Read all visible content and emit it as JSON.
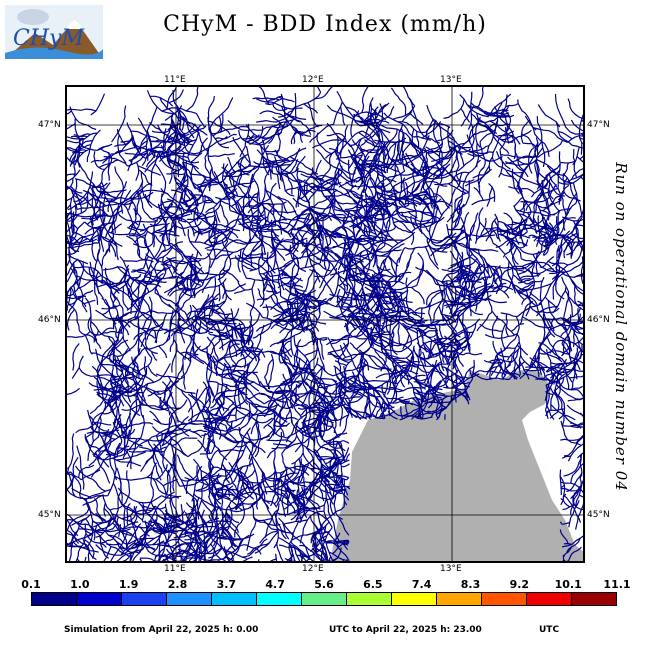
{
  "header": {
    "logo_text": "CHyM",
    "title": "CHyM - BDD Index (mm/h)"
  },
  "side_label": "Run on operational domain number 04",
  "map": {
    "lon_labels": [
      "11°E",
      "12°E",
      "13°E"
    ],
    "lat_labels": [
      "47°N",
      "46°N",
      "45°N"
    ],
    "river_color": "#00008b",
    "sea_color": "#b0b0b0"
  },
  "scale": {
    "labels": [
      "0.1",
      "1.0",
      "1.9",
      "2.8",
      "3.7",
      "4.7",
      "5.6",
      "6.5",
      "7.4",
      "8.3",
      "9.2",
      "10.1",
      "11.1"
    ],
    "colors": [
      "#00008b",
      "#0000cd",
      "#1a40f0",
      "#1e90ff",
      "#00bfff",
      "#00ffff",
      "#66ee88",
      "#aaff33",
      "#ffff00",
      "#ffa500",
      "#ff5500",
      "#ee0000",
      "#990000"
    ]
  },
  "footer": {
    "simulation": "Simulation from April 22, 2025 h: 0.00",
    "to": "UTC to April 22, 2025 h: 23.00",
    "utc": "UTC"
  }
}
